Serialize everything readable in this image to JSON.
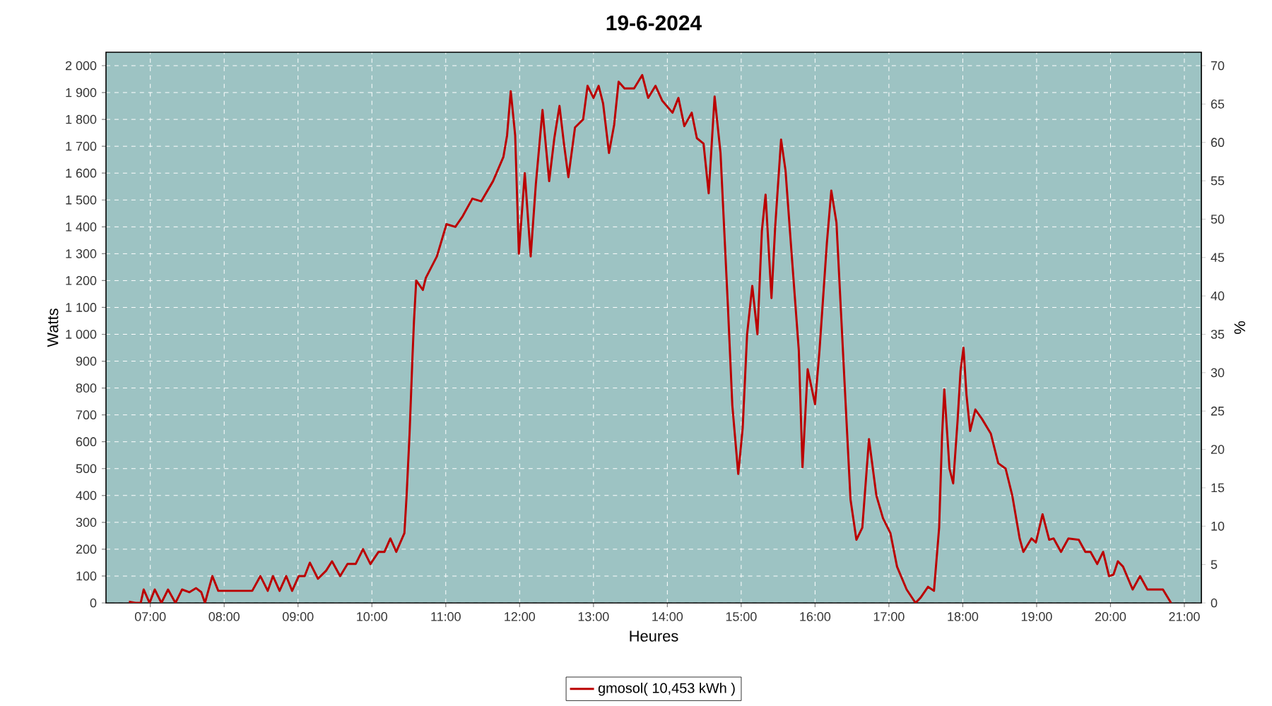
{
  "chart_data": {
    "type": "line",
    "title": "19-6-2024",
    "xlabel": "Heures",
    "ylabel": "Watts",
    "y2label": "%",
    "xlim": [
      6.4,
      21.23
    ],
    "ylim": [
      0,
      2050
    ],
    "y2lim": [
      0,
      71.75
    ],
    "xticks": [
      {
        "value": 7,
        "label": "07:00"
      },
      {
        "value": 8,
        "label": "08:00"
      },
      {
        "value": 9,
        "label": "09:00"
      },
      {
        "value": 10,
        "label": "10:00"
      },
      {
        "value": 11,
        "label": "11:00"
      },
      {
        "value": 12,
        "label": "12:00"
      },
      {
        "value": 13,
        "label": "13:00"
      },
      {
        "value": 14,
        "label": "14:00"
      },
      {
        "value": 15,
        "label": "15:00"
      },
      {
        "value": 16,
        "label": "16:00"
      },
      {
        "value": 17,
        "label": "17:00"
      },
      {
        "value": 18,
        "label": "18:00"
      },
      {
        "value": 19,
        "label": "19:00"
      },
      {
        "value": 20,
        "label": "20:00"
      },
      {
        "value": 21,
        "label": "21:00"
      }
    ],
    "yticks": [
      0,
      100,
      200,
      300,
      400,
      500,
      600,
      700,
      800,
      900,
      {
        "value": 1000,
        "label": "1 000"
      },
      {
        "value": 1100,
        "label": "1 100"
      },
      {
        "value": 1200,
        "label": "1 200"
      },
      {
        "value": 1300,
        "label": "1 300"
      },
      {
        "value": 1400,
        "label": "1 400"
      },
      {
        "value": 1500,
        "label": "1 500"
      },
      {
        "value": 1600,
        "label": "1 600"
      },
      {
        "value": 1700,
        "label": "1 700"
      },
      {
        "value": 1800,
        "label": "1 800"
      },
      {
        "value": 1900,
        "label": "1 900"
      },
      {
        "value": 2000,
        "label": "2 000"
      }
    ],
    "y2ticks": [
      0,
      5,
      10,
      15,
      20,
      25,
      30,
      35,
      40,
      45,
      50,
      55,
      60,
      65,
      70
    ],
    "grid": true,
    "legend": "bottom",
    "series": [
      {
        "name": "gmosol( 10,453 kWh )",
        "color": "#bb0000",
        "x": [
          6.71,
          6.8,
          6.87,
          6.91,
          6.99,
          7.06,
          7.15,
          7.24,
          7.34,
          7.43,
          7.53,
          7.62,
          7.69,
          7.74,
          7.84,
          7.92,
          8.38,
          8.49,
          8.59,
          8.66,
          8.75,
          8.84,
          8.92,
          9.01,
          9.09,
          9.16,
          9.27,
          9.38,
          9.46,
          9.57,
          9.67,
          9.78,
          9.88,
          9.98,
          10.09,
          10.17,
          10.25,
          10.33,
          10.44,
          10.47,
          10.51,
          10.55,
          10.57,
          10.6,
          10.69,
          10.73,
          10.88,
          11.01,
          11.13,
          11.23,
          11.36,
          11.48,
          11.64,
          11.78,
          11.83,
          11.88,
          11.94,
          11.99,
          12.07,
          12.15,
          12.22,
          12.31,
          12.4,
          12.47,
          12.54,
          12.6,
          12.66,
          12.75,
          12.86,
          12.92,
          13.0,
          13.07,
          13.13,
          13.21,
          13.28,
          13.34,
          13.42,
          13.55,
          13.66,
          13.74,
          13.84,
          13.93,
          14.07,
          14.15,
          14.23,
          14.33,
          14.4,
          14.49,
          14.56,
          14.64,
          14.72,
          14.82,
          14.88,
          14.96,
          15.02,
          15.08,
          15.15,
          15.22,
          15.28,
          15.33,
          15.41,
          15.46,
          15.54,
          15.6,
          15.68,
          15.78,
          15.83,
          15.9,
          16.0,
          16.06,
          16.16,
          16.22,
          16.29,
          16.38,
          16.48,
          16.56,
          16.64,
          16.73,
          16.83,
          16.92,
          17.02,
          17.11,
          17.24,
          17.36,
          17.43,
          17.53,
          17.61,
          17.68,
          17.72,
          17.75,
          17.82,
          17.87,
          17.93,
          17.97,
          18.01,
          18.05,
          18.1,
          18.17,
          18.26,
          18.38,
          18.48,
          18.58,
          18.67,
          18.77,
          18.82,
          18.93,
          18.99,
          19.08,
          19.17,
          19.23,
          19.33,
          19.43,
          19.57,
          19.66,
          19.73,
          19.82,
          19.9,
          19.98,
          20.04,
          20.1,
          20.17,
          20.3,
          20.4,
          20.5,
          20.71,
          20.82
        ],
        "values": [
          5,
          0,
          0,
          50,
          0,
          50,
          0,
          50,
          0,
          50,
          40,
          55,
          40,
          0,
          100,
          45,
          45,
          100,
          45,
          100,
          45,
          100,
          45,
          100,
          100,
          150,
          90,
          120,
          155,
          100,
          145,
          145,
          200,
          145,
          190,
          190,
          240,
          190,
          260,
          400,
          630,
          920,
          1050,
          1200,
          1165,
          1210,
          1290,
          1410,
          1400,
          1440,
          1505,
          1495,
          1570,
          1660,
          1740,
          1905,
          1740,
          1300,
          1600,
          1290,
          1560,
          1835,
          1570,
          1730,
          1850,
          1710,
          1585,
          1770,
          1800,
          1925,
          1880,
          1925,
          1860,
          1675,
          1780,
          1940,
          1915,
          1915,
          1965,
          1880,
          1925,
          1870,
          1825,
          1880,
          1775,
          1825,
          1730,
          1710,
          1525,
          1885,
          1675,
          1105,
          735,
          480,
          650,
          1000,
          1180,
          1000,
          1385,
          1520,
          1135,
          1400,
          1725,
          1610,
          1310,
          940,
          505,
          870,
          740,
          940,
          1340,
          1535,
          1415,
          925,
          385,
          235,
          280,
          610,
          400,
          315,
          260,
          135,
          50,
          0,
          20,
          60,
          45,
          280,
          625,
          795,
          500,
          445,
          680,
          865,
          950,
          775,
          640,
          720,
          685,
          630,
          520,
          500,
          400,
          240,
          190,
          240,
          225,
          330,
          235,
          240,
          190,
          240,
          235,
          190,
          190,
          145,
          190,
          100,
          105,
          155,
          135,
          50,
          100,
          50,
          50,
          0
        ]
      }
    ]
  }
}
